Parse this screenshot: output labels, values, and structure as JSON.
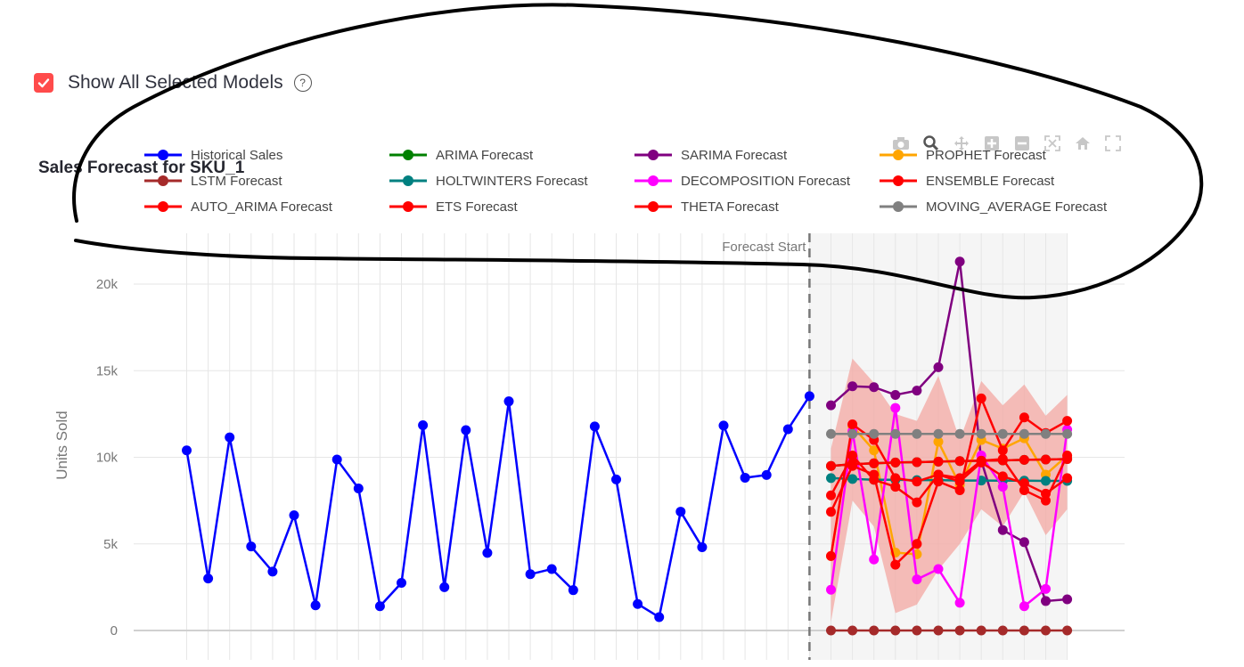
{
  "checkbox": {
    "label": "Show All Selected Models",
    "checked": true,
    "help_icon": "question-circle-icon"
  },
  "modebar": {
    "icons": [
      "camera-icon",
      "zoom-icon",
      "pan-icon",
      "zoom-in-icon",
      "zoom-out-icon",
      "autoscale-icon",
      "home-icon",
      "fullscreen-icon"
    ]
  },
  "chart_data": {
    "type": "line",
    "title": "Sales Forecast for SKU_1",
    "ylabel": "Units Sold",
    "xlabel": "",
    "ylim": [
      -1000,
      23000
    ],
    "yticks": [
      0,
      5000,
      10000,
      15000,
      20000
    ],
    "yticklabels": [
      "0",
      "5k",
      "10k",
      "15k",
      "20k"
    ],
    "grid": true,
    "legend_position": "top",
    "annotation": "Forecast Start",
    "forecast_start_index": 29,
    "x_count": 42,
    "colors": {
      "accent": "#ff4b4b",
      "forecast_region": "#f5f5f5",
      "band": "#f4a39c"
    },
    "series": [
      {
        "name": "Historical Sales",
        "color": "#0000ff",
        "x_start": 0,
        "values": [
          10400,
          3000,
          11150,
          4850,
          3400,
          6650,
          1450,
          9870,
          8200,
          1400,
          2750,
          11850,
          2500,
          11570,
          4480,
          13230,
          3250,
          3550,
          2330,
          11780,
          8720,
          1530,
          770,
          6860,
          4810,
          11830,
          8820,
          8980,
          11620,
          13530
        ]
      },
      {
        "name": "ARIMA Forecast",
        "color": "#008000",
        "x_start": 30,
        "values": [
          9500,
          9600,
          9650,
          9700,
          9720,
          9750,
          9780,
          9800,
          9820,
          9850,
          9870,
          9900
        ]
      },
      {
        "name": "SARIMA Forecast",
        "color": "#800080",
        "x_start": 30,
        "values": [
          13000,
          14100,
          14050,
          13600,
          13850,
          15200,
          21300,
          9800,
          5800,
          5100,
          1700,
          1800
        ]
      },
      {
        "name": "PROPHET Forecast",
        "color": "#ffa500",
        "x_start": 30,
        "values": [
          4300,
          11800,
          10400,
          4500,
          4400,
          10900,
          8400,
          11000,
          10500,
          11100,
          9000,
          10100
        ]
      },
      {
        "name": "LSTM Forecast",
        "color": "#a52a2a",
        "x_start": 30,
        "values": [
          0,
          0,
          0,
          0,
          0,
          0,
          0,
          0,
          0,
          0,
          0,
          0
        ]
      },
      {
        "name": "HOLTWINTERS Forecast",
        "color": "#008080",
        "x_start": 30,
        "values": [
          8800,
          8750,
          8700,
          8700,
          8680,
          8680,
          8660,
          8660,
          8650,
          8650,
          8640,
          8640
        ]
      },
      {
        "name": "DECOMPOSITION Forecast",
        "color": "#ff00ff",
        "x_start": 30,
        "values": [
          2350,
          11500,
          4100,
          12850,
          2950,
          3550,
          1600,
          10100,
          8300,
          1400,
          2400,
          11600
        ]
      },
      {
        "name": "ENSEMBLE Forecast",
        "color": "#ff0000",
        "x_start": 30,
        "values": [
          7800,
          10100,
          8700,
          8300,
          7400,
          9000,
          8600,
          9700,
          8900,
          8500,
          7900,
          8800
        ]
      },
      {
        "name": "AUTO_ARIMA Forecast",
        "color": "#ff0000",
        "x_start": 30,
        "values": [
          6850,
          9500,
          9000,
          3800,
          5000,
          8600,
          8100,
          13400,
          10400,
          12300,
          11400,
          12100
        ]
      },
      {
        "name": "ETS Forecast",
        "color": "#ff0000",
        "x_start": 30,
        "values": [
          9500,
          9600,
          9650,
          9700,
          9720,
          9750,
          9780,
          9800,
          9820,
          9850,
          9870,
          9900
        ]
      },
      {
        "name": "THETA Forecast",
        "color": "#ff0000",
        "x_start": 30,
        "values": [
          4300,
          11900,
          11000,
          8800,
          8600,
          9000,
          8800,
          9800,
          9900,
          8100,
          7500,
          10100
        ]
      },
      {
        "name": "MOVING_AVERAGE Forecast",
        "color": "#808080",
        "x_start": 30,
        "values": [
          11350,
          11350,
          11350,
          11350,
          11350,
          11350,
          11350,
          11350,
          11350,
          11350,
          11350,
          11350
        ]
      }
    ],
    "confidence_band": {
      "x_start": 30,
      "upper": [
        10500,
        15700,
        14300,
        12500,
        12100,
        14700,
        11000,
        14400,
        13000,
        14200,
        12400,
        13600
      ],
      "lower": [
        500,
        7500,
        6000,
        1000,
        1500,
        3500,
        5000,
        7000,
        6000,
        8000,
        5500,
        7000
      ]
    }
  }
}
